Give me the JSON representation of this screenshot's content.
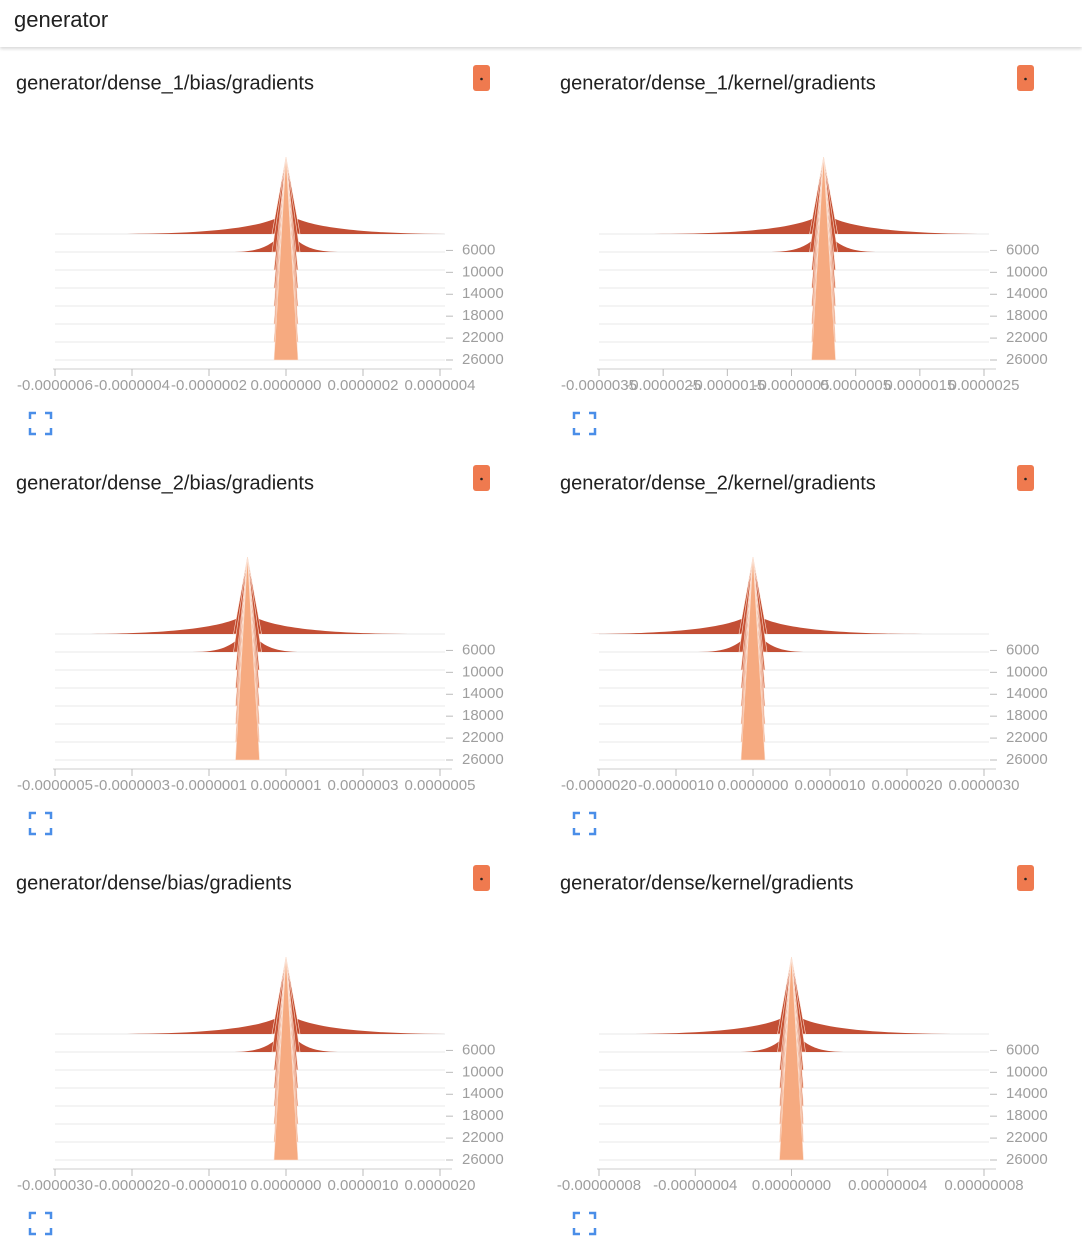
{
  "header": {
    "title": "generator"
  },
  "panels": [
    {
      "title": "generator/dense_1/bias/gradients",
      "xticks": [
        {
          "value": -6e-07,
          "label": "-0.0000006"
        },
        {
          "value": -4e-07,
          "label": "-0.0000004"
        },
        {
          "value": -2e-07,
          "label": "-0.0000002"
        },
        {
          "value": 0,
          "label": "0.0000000"
        },
        {
          "value": 2e-07,
          "label": "0.0000002"
        },
        {
          "value": 4e-07,
          "label": "0.0000004"
        }
      ],
      "yticks": [
        6000,
        10000,
        14000,
        18000,
        22000,
        26000
      ],
      "ylim": [
        3000,
        26000
      ]
    },
    {
      "title": "generator/dense_1/kernel/gradients",
      "xticks": [
        {
          "value": -3.5e-06,
          "label": "-0.0000035"
        },
        {
          "value": -2.5e-06,
          "label": "-0.0000025"
        },
        {
          "value": -1.5e-06,
          "label": "-0.0000015"
        },
        {
          "value": -5e-07,
          "label": "-0.0000005"
        },
        {
          "value": 5e-07,
          "label": "0.0000005"
        },
        {
          "value": 1.5e-06,
          "label": "0.0000015"
        },
        {
          "value": 2.5e-06,
          "label": "0.0000025"
        }
      ],
      "yticks": [
        6000,
        10000,
        14000,
        18000,
        22000,
        26000
      ],
      "ylim": [
        3000,
        26000
      ]
    },
    {
      "title": "generator/dense_2/bias/gradients",
      "xticks": [
        {
          "value": -5e-07,
          "label": "-0.0000005"
        },
        {
          "value": -3e-07,
          "label": "-0.0000003"
        },
        {
          "value": -1e-07,
          "label": "-0.0000001"
        },
        {
          "value": 1e-07,
          "label": "0.0000001"
        },
        {
          "value": 3e-07,
          "label": "0.0000003"
        },
        {
          "value": 5e-07,
          "label": "0.0000005"
        }
      ],
      "yticks": [
        6000,
        10000,
        14000,
        18000,
        22000,
        26000
      ],
      "ylim": [
        3000,
        26000
      ]
    },
    {
      "title": "generator/dense_2/kernel/gradients",
      "xticks": [
        {
          "value": -2e-06,
          "label": "-0.0000020"
        },
        {
          "value": -1e-06,
          "label": "-0.0000010"
        },
        {
          "value": 0,
          "label": "0.0000000"
        },
        {
          "value": 1e-06,
          "label": "0.0000010"
        },
        {
          "value": 2e-06,
          "label": "0.0000020"
        },
        {
          "value": 3e-06,
          "label": "0.0000030"
        }
      ],
      "yticks": [
        6000,
        10000,
        14000,
        18000,
        22000,
        26000
      ],
      "ylim": [
        3000,
        26000
      ]
    },
    {
      "title": "generator/dense/bias/gradients",
      "xticks": [
        {
          "value": -3e-06,
          "label": "-0.0000030"
        },
        {
          "value": -2e-06,
          "label": "-0.0000020"
        },
        {
          "value": -1e-06,
          "label": "-0.0000010"
        },
        {
          "value": 0,
          "label": "0.0000000"
        },
        {
          "value": 1e-06,
          "label": "0.0000010"
        },
        {
          "value": 2e-06,
          "label": "0.0000020"
        }
      ],
      "yticks": [
        6000,
        10000,
        14000,
        18000,
        22000,
        26000
      ],
      "ylim": [
        3000,
        26000
      ]
    },
    {
      "title": "generator/dense/kernel/gradients",
      "xticks": [
        {
          "value": -8e-08,
          "label": "-0.00000008"
        },
        {
          "value": -4e-08,
          "label": "-0.00000004"
        },
        {
          "value": 0,
          "label": "0.00000000"
        },
        {
          "value": 4e-08,
          "label": "0.00000004"
        },
        {
          "value": 8e-08,
          "label": "0.00000008"
        }
      ],
      "yticks": [
        6000,
        10000,
        14000,
        18000,
        22000,
        26000
      ],
      "ylim": [
        3000,
        26000
      ]
    }
  ]
}
